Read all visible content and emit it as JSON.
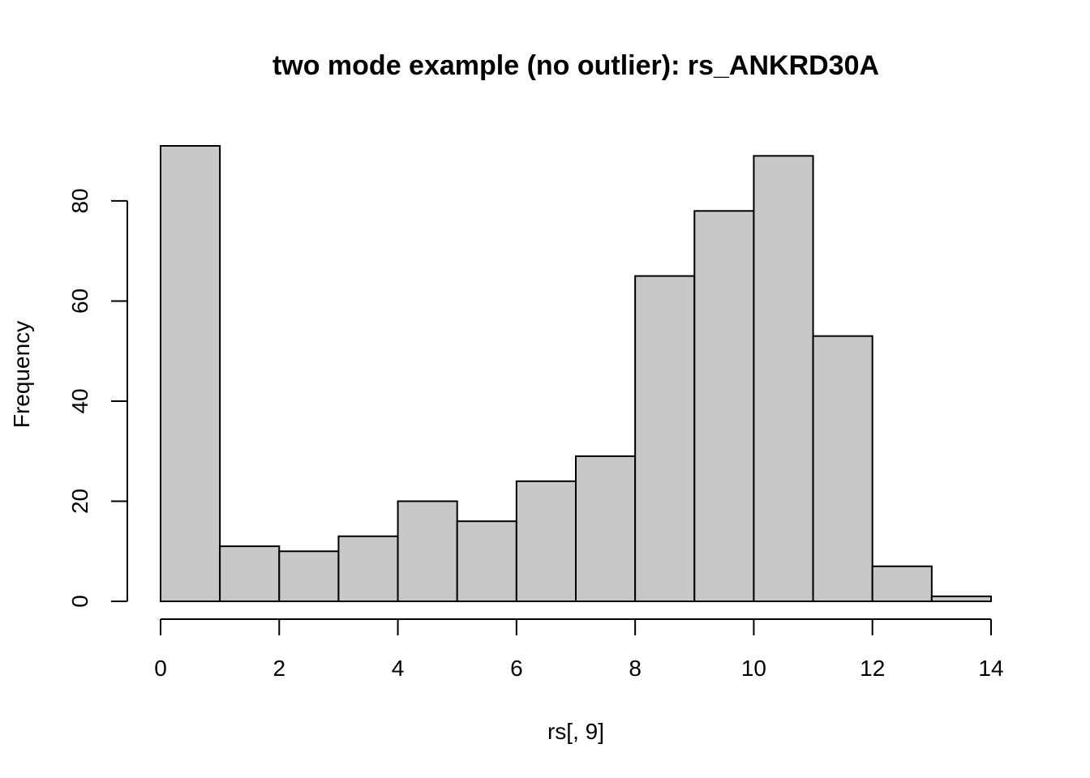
{
  "chart_data": {
    "type": "bar",
    "subtype": "histogram",
    "title": "two mode example (no outlier): rs_ANKRD30A",
    "xlabel": "rs[, 9]",
    "ylabel": "Frequency",
    "bin_edges": [
      0,
      1,
      2,
      3,
      4,
      5,
      6,
      7,
      8,
      9,
      10,
      11,
      12,
      13,
      14
    ],
    "values": [
      91,
      11,
      10,
      13,
      20,
      16,
      24,
      29,
      65,
      78,
      89,
      53,
      7,
      1
    ],
    "xlim": [
      0,
      14
    ],
    "ylim": [
      0,
      91
    ],
    "x_ticks": [
      0,
      2,
      4,
      6,
      8,
      10,
      12,
      14
    ],
    "y_ticks": [
      0,
      20,
      40,
      60,
      80
    ],
    "bar_color": "#c8c8c8",
    "grid": false,
    "legend": "none"
  }
}
